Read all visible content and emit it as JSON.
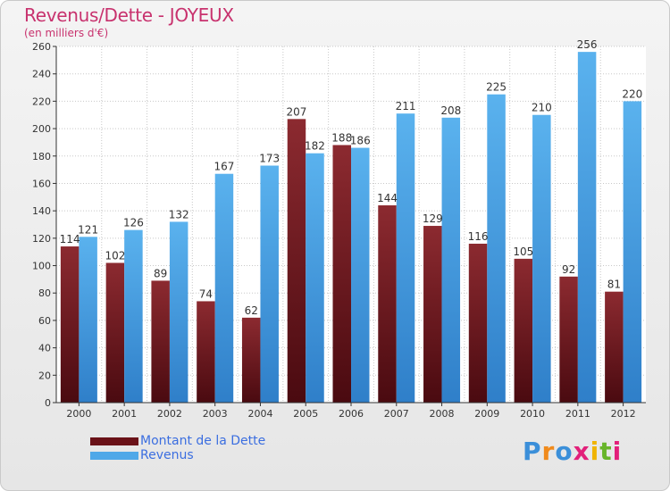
{
  "header": {
    "title": "Revenus/Dette - JOYEUX",
    "subtitle": "(en milliers d'€)"
  },
  "colors": {
    "dette": "#7a1f26",
    "revenus": "#4fa8e8",
    "title": "#c8326e",
    "legend_text": "#3b6ee0"
  },
  "chart_data": {
    "type": "bar",
    "title": "Revenus/Dette - JOYEUX",
    "subtitle": "(en milliers d'€)",
    "categories": [
      "2000",
      "2001",
      "2002",
      "2003",
      "2004",
      "2005",
      "2006",
      "2007",
      "2008",
      "2009",
      "2010",
      "2011",
      "2012"
    ],
    "series": [
      {
        "name": "Montant de la Dette",
        "values": [
          114,
          102,
          89,
          74,
          62,
          207,
          188,
          144,
          129,
          116,
          105,
          92,
          81
        ]
      },
      {
        "name": "Revenus",
        "values": [
          121,
          126,
          132,
          167,
          173,
          182,
          186,
          211,
          208,
          225,
          210,
          256,
          220
        ]
      }
    ],
    "ylim": [
      0,
      260
    ],
    "yticks": [
      0,
      20,
      40,
      60,
      80,
      100,
      120,
      140,
      160,
      180,
      200,
      220,
      240,
      260
    ],
    "grid": true,
    "legend": "bottom-left"
  },
  "legend": {
    "items": [
      {
        "label": "Montant de la Dette"
      },
      {
        "label": "Revenus"
      }
    ]
  },
  "logo": {
    "letters": [
      "P",
      "r",
      "o",
      "x",
      "i",
      "t",
      "i"
    ],
    "colors": [
      "#3b8fd9",
      "#f08a1c",
      "#3b8fd9",
      "#e2207a",
      "#f0b400",
      "#68b52a",
      "#e2207a"
    ]
  }
}
